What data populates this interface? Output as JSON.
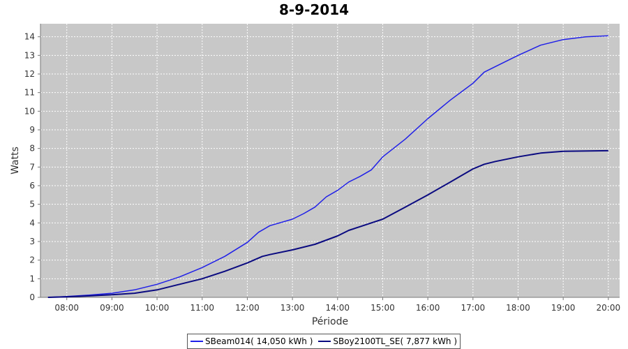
{
  "chart_data": {
    "type": "line",
    "title": "8-9-2014",
    "xlabel": "Période",
    "ylabel": "Watts",
    "xlim": [
      "07:25",
      "20:15"
    ],
    "ylim": [
      0,
      14.7
    ],
    "x_ticks": [
      "08:00",
      "09:00",
      "10:00",
      "11:00",
      "12:00",
      "13:00",
      "14:00",
      "15:00",
      "16:00",
      "17:00",
      "18:00",
      "19:00",
      "20:00"
    ],
    "y_ticks": [
      0,
      1,
      2,
      3,
      4,
      5,
      6,
      7,
      8,
      9,
      10,
      11,
      12,
      13,
      14
    ],
    "grid": true,
    "legend_position": "bottom",
    "background_color": "#c8c8c8",
    "series": [
      {
        "name": "SBeam014( 14,050 kWh )",
        "color": "#1f1fe8",
        "points": [
          [
            "07:35",
            0.0
          ],
          [
            "08:00",
            0.05
          ],
          [
            "08:30",
            0.12
          ],
          [
            "09:00",
            0.22
          ],
          [
            "09:30",
            0.4
          ],
          [
            "10:00",
            0.7
          ],
          [
            "10:30",
            1.1
          ],
          [
            "11:00",
            1.6
          ],
          [
            "11:30",
            2.2
          ],
          [
            "12:00",
            2.95
          ],
          [
            "12:15",
            3.5
          ],
          [
            "12:30",
            3.85
          ],
          [
            "13:00",
            4.2
          ],
          [
            "13:15",
            4.5
          ],
          [
            "13:30",
            4.85
          ],
          [
            "13:45",
            5.4
          ],
          [
            "14:00",
            5.75
          ],
          [
            "14:15",
            6.2
          ],
          [
            "14:30",
            6.5
          ],
          [
            "14:45",
            6.85
          ],
          [
            "15:00",
            7.55
          ],
          [
            "15:30",
            8.5
          ],
          [
            "16:00",
            9.6
          ],
          [
            "16:30",
            10.6
          ],
          [
            "17:00",
            11.5
          ],
          [
            "17:15",
            12.1
          ],
          [
            "17:30",
            12.4
          ],
          [
            "18:00",
            13.0
          ],
          [
            "18:30",
            13.55
          ],
          [
            "19:00",
            13.85
          ],
          [
            "19:30",
            14.0
          ],
          [
            "20:00",
            14.05
          ]
        ]
      },
      {
        "name": "SBoy2100TL_SE( 7,877 kWh )",
        "color": "#0a0a80",
        "points": [
          [
            "07:35",
            0.0
          ],
          [
            "08:00",
            0.03
          ],
          [
            "08:30",
            0.08
          ],
          [
            "09:00",
            0.14
          ],
          [
            "09:30",
            0.22
          ],
          [
            "10:00",
            0.4
          ],
          [
            "10:30",
            0.7
          ],
          [
            "11:00",
            1.0
          ],
          [
            "11:30",
            1.4
          ],
          [
            "12:00",
            1.85
          ],
          [
            "12:20",
            2.2
          ],
          [
            "12:30",
            2.3
          ],
          [
            "13:00",
            2.55
          ],
          [
            "13:30",
            2.85
          ],
          [
            "14:00",
            3.3
          ],
          [
            "14:15",
            3.6
          ],
          [
            "14:30",
            3.8
          ],
          [
            "14:45",
            4.0
          ],
          [
            "15:00",
            4.2
          ],
          [
            "15:30",
            4.85
          ],
          [
            "16:00",
            5.5
          ],
          [
            "16:30",
            6.2
          ],
          [
            "17:00",
            6.9
          ],
          [
            "17:15",
            7.15
          ],
          [
            "17:30",
            7.3
          ],
          [
            "18:00",
            7.55
          ],
          [
            "18:30",
            7.75
          ],
          [
            "19:00",
            7.85
          ],
          [
            "20:00",
            7.88
          ]
        ]
      }
    ]
  }
}
